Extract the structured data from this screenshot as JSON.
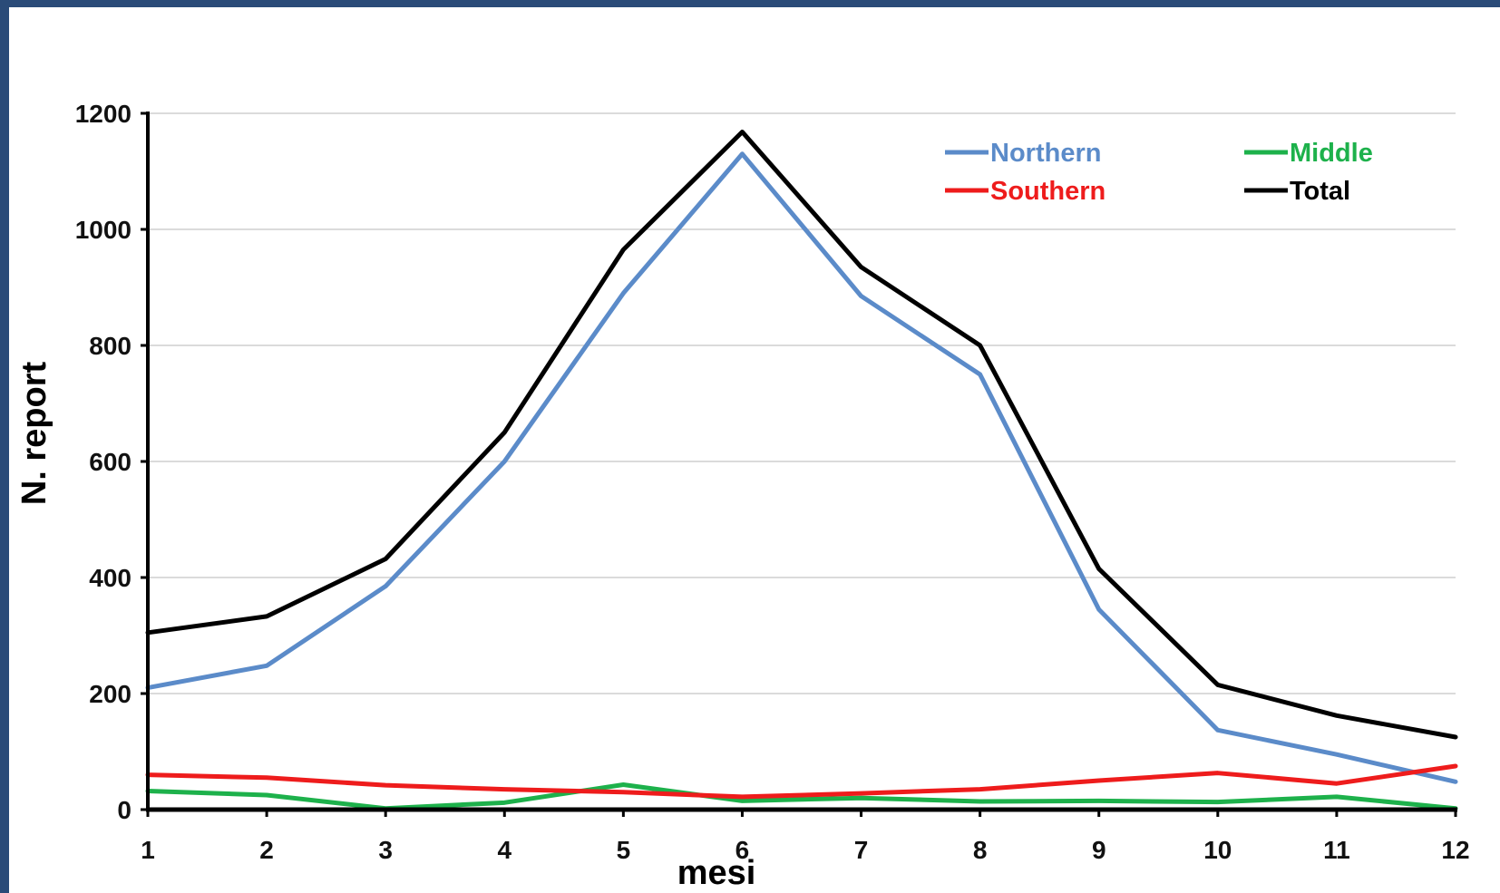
{
  "chart_data": {
    "type": "line",
    "title": "",
    "xlabel": "mesi",
    "ylabel": "N. report",
    "categories": [
      "1",
      "2",
      "3",
      "4",
      "5",
      "6",
      "7",
      "8",
      "9",
      "10",
      "11",
      "12"
    ],
    "x": [
      1,
      2,
      3,
      4,
      5,
      6,
      7,
      8,
      9,
      10,
      11,
      12
    ],
    "ylim": [
      0,
      1200
    ],
    "yticks": [
      "0",
      "200",
      "400",
      "600",
      "800",
      "1000",
      "1200"
    ],
    "grid": "horizontal",
    "legend_position": "top-right",
    "series": [
      {
        "name": "Northern",
        "color": "#5b8bc9",
        "values": [
          210,
          248,
          385,
          600,
          890,
          1130,
          885,
          750,
          345,
          137,
          95,
          48
        ]
      },
      {
        "name": "Middle",
        "color": "#1db14b",
        "values": [
          32,
          25,
          2,
          12,
          43,
          15,
          20,
          14,
          15,
          13,
          22,
          2
        ]
      },
      {
        "name": "Southern",
        "color": "#ee1c1c",
        "values": [
          60,
          55,
          42,
          35,
          30,
          22,
          28,
          35,
          50,
          63,
          45,
          75
        ]
      },
      {
        "name": "Total",
        "color": "#000000",
        "values": [
          305,
          333,
          432,
          650,
          965,
          1168,
          935,
          800,
          415,
          215,
          162,
          125
        ]
      }
    ]
  }
}
